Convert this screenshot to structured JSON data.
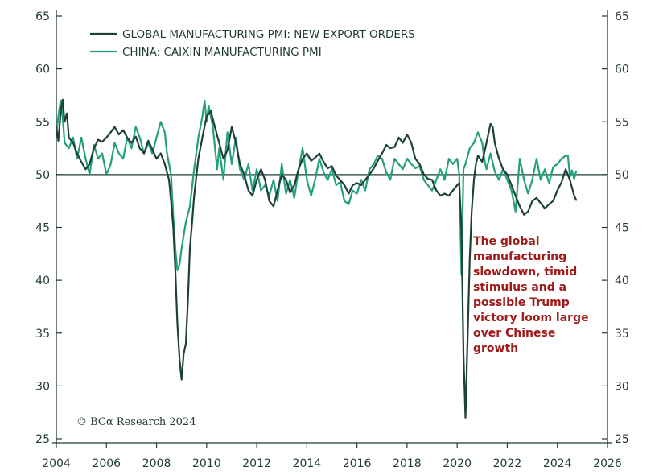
{
  "colors": {
    "global": "#1f3f3d",
    "china": "#24a07c",
    "axis": "#1f3a36",
    "note": "#a01c1c"
  },
  "chart_data": {
    "type": "line",
    "title": "",
    "xlabel": "",
    "ylabel": "",
    "xlim": [
      2004,
      2026
    ],
    "ylim": [
      25,
      65
    ],
    "x_ticks": [
      "2004",
      "2006",
      "2008",
      "2010",
      "2012",
      "2014",
      "2016",
      "2018",
      "2020",
      "2022",
      "2024",
      "2026"
    ],
    "y_ticks_left": [
      "25",
      "30",
      "35",
      "40",
      "45",
      "50",
      "55",
      "60",
      "65"
    ],
    "y_ticks_right": [
      "25",
      "30",
      "35",
      "40",
      "45",
      "50",
      "55",
      "60",
      "65"
    ],
    "reference_line": 50,
    "legend": {
      "position": "top-left"
    },
    "series": [
      {
        "name": "GLOBAL MANUFACTURING PMI: NEW EXPORT ORDERS",
        "color_key": "global",
        "points": [
          [
            2004.0,
            54.5
          ],
          [
            2004.08,
            53.2
          ],
          [
            2004.17,
            55.8
          ],
          [
            2004.25,
            57.1
          ],
          [
            2004.33,
            55.0
          ],
          [
            2004.42,
            55.8
          ],
          [
            2004.5,
            53.5
          ],
          [
            2004.67,
            53.0
          ],
          [
            2004.83,
            52.0
          ],
          [
            2005.0,
            51.2
          ],
          [
            2005.17,
            50.5
          ],
          [
            2005.33,
            51.0
          ],
          [
            2005.5,
            52.5
          ],
          [
            2005.67,
            53.3
          ],
          [
            2005.83,
            53.1
          ],
          [
            2006.0,
            53.5
          ],
          [
            2006.17,
            54.0
          ],
          [
            2006.33,
            54.5
          ],
          [
            2006.5,
            53.8
          ],
          [
            2006.67,
            54.2
          ],
          [
            2006.83,
            53.5
          ],
          [
            2007.0,
            53.0
          ],
          [
            2007.17,
            53.6
          ],
          [
            2007.33,
            52.5
          ],
          [
            2007.5,
            52.0
          ],
          [
            2007.67,
            53.2
          ],
          [
            2007.83,
            52.4
          ],
          [
            2008.0,
            51.5
          ],
          [
            2008.17,
            52.0
          ],
          [
            2008.33,
            51.0
          ],
          [
            2008.5,
            49.5
          ],
          [
            2008.58,
            47.5
          ],
          [
            2008.67,
            45.0
          ],
          [
            2008.75,
            41.0
          ],
          [
            2008.83,
            36.0
          ],
          [
            2008.92,
            32.5
          ],
          [
            2009.0,
            30.6
          ],
          [
            2009.08,
            33.0
          ],
          [
            2009.17,
            34.0
          ],
          [
            2009.25,
            38.0
          ],
          [
            2009.33,
            43.0
          ],
          [
            2009.42,
            45.5
          ],
          [
            2009.5,
            48.0
          ],
          [
            2009.67,
            51.5
          ],
          [
            2009.83,
            53.5
          ],
          [
            2010.0,
            55.5
          ],
          [
            2010.17,
            56.0
          ],
          [
            2010.33,
            54.5
          ],
          [
            2010.5,
            53.0
          ],
          [
            2010.67,
            51.5
          ],
          [
            2010.83,
            52.3
          ],
          [
            2011.0,
            54.5
          ],
          [
            2011.17,
            53.0
          ],
          [
            2011.33,
            51.0
          ],
          [
            2011.5,
            50.0
          ],
          [
            2011.67,
            48.5
          ],
          [
            2011.83,
            48.0
          ],
          [
            2012.0,
            49.5
          ],
          [
            2012.17,
            50.5
          ],
          [
            2012.33,
            49.5
          ],
          [
            2012.5,
            47.5
          ],
          [
            2012.67,
            47.0
          ],
          [
            2012.83,
            48.5
          ],
          [
            2013.0,
            50.0
          ],
          [
            2013.17,
            49.5
          ],
          [
            2013.33,
            48.3
          ],
          [
            2013.5,
            49.0
          ],
          [
            2013.67,
            50.5
          ],
          [
            2013.83,
            51.5
          ],
          [
            2014.0,
            52.0
          ],
          [
            2014.17,
            51.3
          ],
          [
            2014.33,
            51.6
          ],
          [
            2014.5,
            52.0
          ],
          [
            2014.67,
            51.2
          ],
          [
            2014.83,
            50.6
          ],
          [
            2015.0,
            50.8
          ],
          [
            2015.17,
            49.9
          ],
          [
            2015.33,
            49.5
          ],
          [
            2015.5,
            49.0
          ],
          [
            2015.67,
            48.2
          ],
          [
            2015.83,
            49.0
          ],
          [
            2016.0,
            49.2
          ],
          [
            2016.17,
            49.0
          ],
          [
            2016.33,
            49.5
          ],
          [
            2016.5,
            50.0
          ],
          [
            2016.67,
            50.6
          ],
          [
            2016.83,
            51.3
          ],
          [
            2017.0,
            52.0
          ],
          [
            2017.17,
            52.8
          ],
          [
            2017.33,
            52.5
          ],
          [
            2017.5,
            52.6
          ],
          [
            2017.67,
            53.5
          ],
          [
            2017.83,
            53.0
          ],
          [
            2018.0,
            53.8
          ],
          [
            2018.17,
            53.0
          ],
          [
            2018.33,
            51.5
          ],
          [
            2018.5,
            51.0
          ],
          [
            2018.67,
            50.0
          ],
          [
            2018.83,
            49.6
          ],
          [
            2019.0,
            49.5
          ],
          [
            2019.17,
            48.5
          ],
          [
            2019.33,
            48.0
          ],
          [
            2019.5,
            48.2
          ],
          [
            2019.67,
            48.0
          ],
          [
            2019.83,
            48.5
          ],
          [
            2020.0,
            49.0
          ],
          [
            2020.08,
            49.2
          ],
          [
            2020.17,
            45.0
          ],
          [
            2020.25,
            33.0
          ],
          [
            2020.33,
            27.0
          ],
          [
            2020.42,
            35.0
          ],
          [
            2020.5,
            42.0
          ],
          [
            2020.58,
            46.5
          ],
          [
            2020.67,
            49.5
          ],
          [
            2020.75,
            51.0
          ],
          [
            2020.83,
            51.8
          ],
          [
            2021.0,
            51.2
          ],
          [
            2021.17,
            53.0
          ],
          [
            2021.33,
            54.8
          ],
          [
            2021.42,
            54.5
          ],
          [
            2021.5,
            53.0
          ],
          [
            2021.67,
            51.5
          ],
          [
            2021.83,
            50.5
          ],
          [
            2022.0,
            50.0
          ],
          [
            2022.17,
            49.0
          ],
          [
            2022.33,
            48.0
          ],
          [
            2022.5,
            47.0
          ],
          [
            2022.67,
            46.2
          ],
          [
            2022.83,
            46.5
          ],
          [
            2023.0,
            47.5
          ],
          [
            2023.17,
            47.8
          ],
          [
            2023.33,
            47.3
          ],
          [
            2023.5,
            46.8
          ],
          [
            2023.67,
            47.2
          ],
          [
            2023.83,
            47.5
          ],
          [
            2024.0,
            48.5
          ],
          [
            2024.17,
            49.3
          ],
          [
            2024.33,
            50.5
          ],
          [
            2024.5,
            49.5
          ],
          [
            2024.67,
            48.0
          ],
          [
            2024.75,
            47.6
          ]
        ]
      },
      {
        "name": "CHINA: CAIXIN MANUFACTURING PMI",
        "color_key": "china",
        "points": [
          [
            2004.0,
            54.0
          ],
          [
            2004.08,
            55.5
          ],
          [
            2004.17,
            57.0
          ],
          [
            2004.25,
            55.5
          ],
          [
            2004.33,
            53.0
          ],
          [
            2004.5,
            52.5
          ],
          [
            2004.67,
            53.5
          ],
          [
            2004.83,
            51.5
          ],
          [
            2005.0,
            53.5
          ],
          [
            2005.17,
            51.5
          ],
          [
            2005.33,
            50.0
          ],
          [
            2005.5,
            52.8
          ],
          [
            2005.67,
            51.5
          ],
          [
            2005.83,
            52.0
          ],
          [
            2006.0,
            50.0
          ],
          [
            2006.17,
            51.0
          ],
          [
            2006.33,
            53.0
          ],
          [
            2006.5,
            52.0
          ],
          [
            2006.67,
            51.5
          ],
          [
            2006.83,
            53.5
          ],
          [
            2007.0,
            52.5
          ],
          [
            2007.17,
            54.5
          ],
          [
            2007.33,
            53.5
          ],
          [
            2007.5,
            52.0
          ],
          [
            2007.67,
            53.0
          ],
          [
            2007.83,
            52.0
          ],
          [
            2008.0,
            53.5
          ],
          [
            2008.17,
            55.0
          ],
          [
            2008.33,
            54.0
          ],
          [
            2008.42,
            52.0
          ],
          [
            2008.5,
            51.0
          ],
          [
            2008.58,
            50.0
          ],
          [
            2008.67,
            46.0
          ],
          [
            2008.75,
            43.0
          ],
          [
            2008.83,
            41.0
          ],
          [
            2008.92,
            41.5
          ],
          [
            2009.0,
            43.0
          ],
          [
            2009.17,
            45.5
          ],
          [
            2009.33,
            47.0
          ],
          [
            2009.5,
            50.5
          ],
          [
            2009.67,
            53.5
          ],
          [
            2009.83,
            55.5
          ],
          [
            2009.92,
            57.0
          ],
          [
            2010.0,
            55.0
          ],
          [
            2010.08,
            56.5
          ],
          [
            2010.25,
            54.5
          ],
          [
            2010.42,
            50.5
          ],
          [
            2010.5,
            52.5
          ],
          [
            2010.67,
            49.5
          ],
          [
            2010.83,
            54.0
          ],
          [
            2011.0,
            51.0
          ],
          [
            2011.17,
            53.5
          ],
          [
            2011.33,
            50.5
          ],
          [
            2011.5,
            49.5
          ],
          [
            2011.67,
            51.0
          ],
          [
            2011.83,
            48.5
          ],
          [
            2012.0,
            50.5
          ],
          [
            2012.17,
            48.5
          ],
          [
            2012.33,
            49.0
          ],
          [
            2012.5,
            48.0
          ],
          [
            2012.67,
            49.5
          ],
          [
            2012.83,
            47.5
          ],
          [
            2013.0,
            51.0
          ],
          [
            2013.17,
            48.2
          ],
          [
            2013.33,
            49.5
          ],
          [
            2013.5,
            47.8
          ],
          [
            2013.67,
            50.5
          ],
          [
            2013.83,
            52.5
          ],
          [
            2014.0,
            49.5
          ],
          [
            2014.17,
            48.0
          ],
          [
            2014.33,
            49.5
          ],
          [
            2014.5,
            51.5
          ],
          [
            2014.67,
            50.2
          ],
          [
            2014.83,
            49.5
          ],
          [
            2015.0,
            50.5
          ],
          [
            2015.17,
            49.0
          ],
          [
            2015.33,
            49.3
          ],
          [
            2015.5,
            47.5
          ],
          [
            2015.67,
            47.2
          ],
          [
            2015.83,
            48.5
          ],
          [
            2016.0,
            48.2
          ],
          [
            2016.17,
            49.5
          ],
          [
            2016.33,
            48.5
          ],
          [
            2016.5,
            50.5
          ],
          [
            2016.67,
            51.0
          ],
          [
            2016.83,
            51.8
          ],
          [
            2017.0,
            51.5
          ],
          [
            2017.17,
            50.2
          ],
          [
            2017.33,
            49.5
          ],
          [
            2017.5,
            51.5
          ],
          [
            2017.67,
            51.0
          ],
          [
            2017.83,
            50.5
          ],
          [
            2018.0,
            51.5
          ],
          [
            2018.17,
            51.0
          ],
          [
            2018.33,
            50.6
          ],
          [
            2018.5,
            50.8
          ],
          [
            2018.67,
            49.5
          ],
          [
            2018.83,
            49.0
          ],
          [
            2019.0,
            48.5
          ],
          [
            2019.17,
            49.5
          ],
          [
            2019.33,
            50.5
          ],
          [
            2019.5,
            49.5
          ],
          [
            2019.67,
            51.5
          ],
          [
            2019.83,
            51.0
          ],
          [
            2020.0,
            51.5
          ],
          [
            2020.08,
            50.0
          ],
          [
            2020.17,
            40.5
          ],
          [
            2020.25,
            50.5
          ],
          [
            2020.33,
            51.0
          ],
          [
            2020.5,
            52.5
          ],
          [
            2020.67,
            53.0
          ],
          [
            2020.83,
            54.0
          ],
          [
            2021.0,
            53.0
          ],
          [
            2021.08,
            51.5
          ],
          [
            2021.17,
            50.5
          ],
          [
            2021.33,
            52.0
          ],
          [
            2021.5,
            50.3
          ],
          [
            2021.67,
            49.5
          ],
          [
            2021.83,
            50.5
          ],
          [
            2022.0,
            49.5
          ],
          [
            2022.17,
            48.5
          ],
          [
            2022.33,
            46.5
          ],
          [
            2022.5,
            51.5
          ],
          [
            2022.67,
            49.5
          ],
          [
            2022.83,
            48.2
          ],
          [
            2023.0,
            49.5
          ],
          [
            2023.17,
            51.5
          ],
          [
            2023.33,
            49.5
          ],
          [
            2023.5,
            50.5
          ],
          [
            2023.67,
            49.2
          ],
          [
            2023.83,
            50.7
          ],
          [
            2024.0,
            51.0
          ],
          [
            2024.17,
            51.5
          ],
          [
            2024.33,
            51.8
          ],
          [
            2024.42,
            51.8
          ],
          [
            2024.5,
            49.8
          ],
          [
            2024.58,
            50.4
          ],
          [
            2024.67,
            49.6
          ],
          [
            2024.75,
            50.3
          ]
        ]
      }
    ],
    "annotation": "The global manufacturing slowdown, timid stimulus and a possible Trump victory loom large over Chinese growth",
    "annotation_lines": [
      "The global",
      "manufacturing",
      "slowdown, timid",
      "stimulus and a",
      "possible Trump",
      "victory loom large",
      "over Chinese",
      "growth"
    ],
    "credit": "© BCα Research 2024"
  }
}
